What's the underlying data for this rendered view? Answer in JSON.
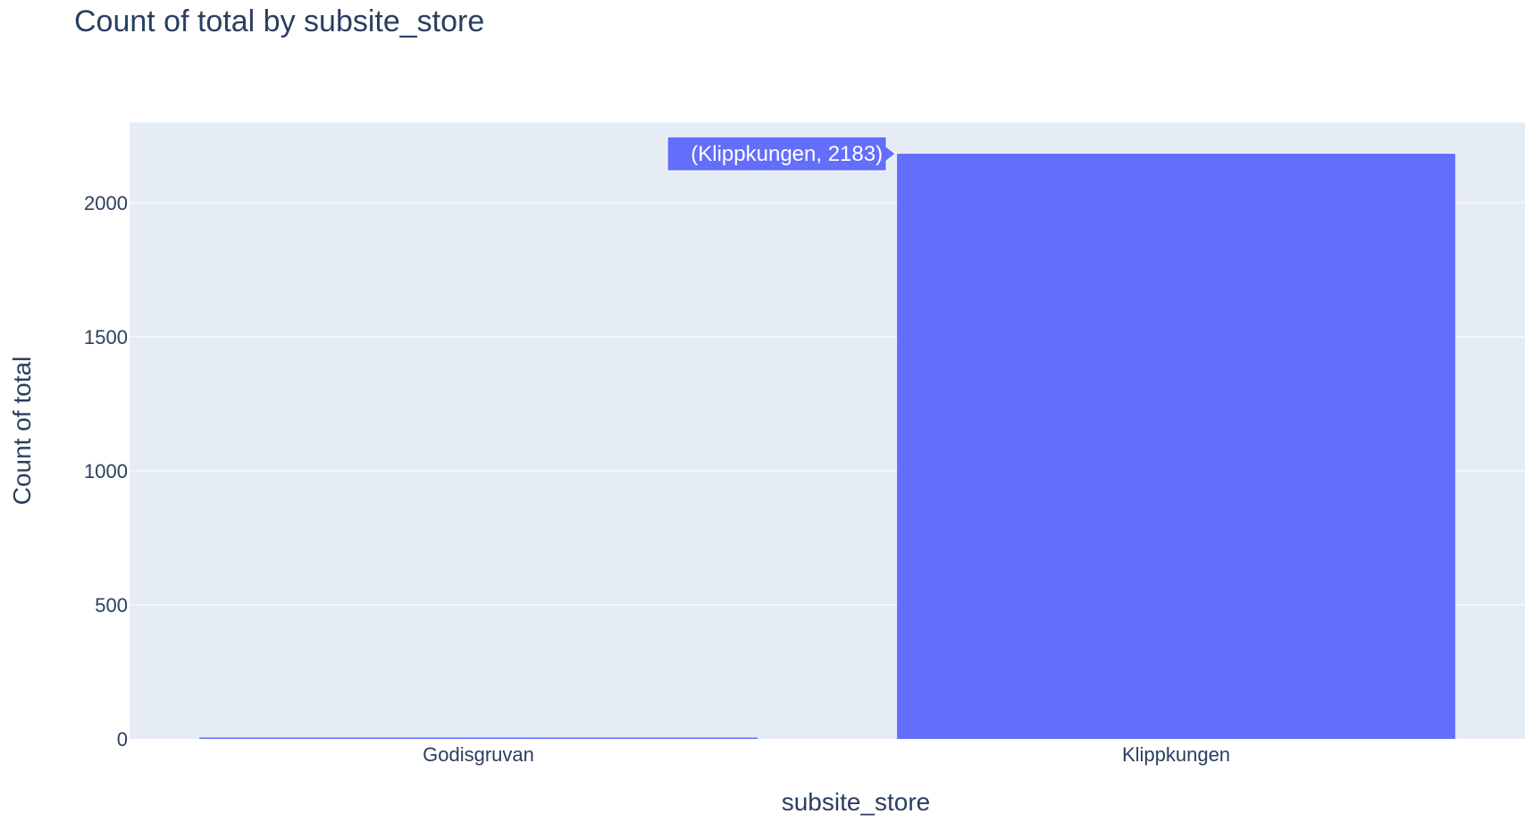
{
  "chart_data": {
    "type": "bar",
    "title": "Count of total by subsite_store",
    "xlabel": "subsite_store",
    "ylabel": "Count of total",
    "categories": [
      "Godisgruvan",
      "Klippkungen"
    ],
    "values": [
      5,
      2183
    ],
    "ylim": [
      0,
      2300
    ],
    "yticks": [
      0,
      500,
      1000,
      1500,
      2000
    ],
    "grid": true,
    "hover_label": "(Klippkungen, 2183)",
    "colors": {
      "bar": "#636efa",
      "plot_background": "#e5ecf6",
      "gridline": "#ffffff",
      "text": "#2a3f5f",
      "hover_text": "#ffffff"
    }
  }
}
